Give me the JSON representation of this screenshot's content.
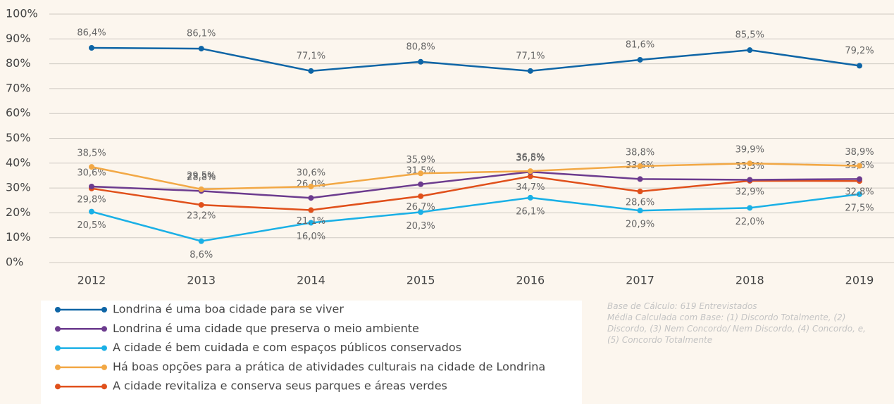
{
  "chart_data": {
    "type": "line",
    "categories": [
      "2012",
      "2013",
      "2014",
      "2015",
      "2016",
      "2017",
      "2018",
      "2019"
    ],
    "ylim": [
      0,
      100
    ],
    "yticks": [
      {
        "value": 0,
        "label": "0%"
      },
      {
        "value": 10,
        "label": "10%"
      },
      {
        "value": 20,
        "label": "20%"
      },
      {
        "value": 30,
        "label": "30%"
      },
      {
        "value": 40,
        "label": "40%"
      },
      {
        "value": 50,
        "label": "50%"
      },
      {
        "value": 60,
        "label": "60%"
      },
      {
        "value": 70,
        "label": "70%"
      },
      {
        "value": 80,
        "label": "80%"
      },
      {
        "value": 90,
        "label": "90%"
      },
      {
        "value": 100,
        "label": "100%"
      }
    ],
    "grid": true,
    "series": [
      {
        "name": "Londrina é uma boa cidade para se viver",
        "color": "#0e65a6",
        "values": [
          86.4,
          86.1,
          77.1,
          80.8,
          77.1,
          81.6,
          85.5,
          79.2
        ],
        "value_labels": [
          "86,4%",
          "86,1%",
          "77,1%",
          "80,8%",
          "77,1%",
          "81,6%",
          "85,5%",
          "79,2%"
        ]
      },
      {
        "name": "Londrina é uma cidade que preserva o meio ambiente",
        "color": "#6c3b8e",
        "values": [
          30.6,
          28.8,
          26.0,
          31.5,
          36.5,
          33.6,
          33.3,
          33.6
        ],
        "value_labels": [
          "30,6%",
          "28,8%",
          "26,0%",
          "31,5%",
          "36,5%",
          "33,6%",
          "33,3%",
          "33,6%"
        ]
      },
      {
        "name": "A cidade é bem cuidada e com espaços públicos conservados",
        "color": "#1ab0e6",
        "values": [
          20.5,
          8.6,
          16.0,
          20.3,
          26.1,
          20.9,
          22.0,
          27.5
        ],
        "value_labels": [
          "20,5%",
          "8,6%",
          "16,0%",
          "20,3%",
          "26,1%",
          "20,9%",
          "22,0%",
          "27,5%"
        ]
      },
      {
        "name": "Há boas opções para a prática de atividades culturais na cidade de Londrina",
        "color": "#f2a845",
        "values": [
          38.5,
          29.5,
          30.6,
          35.9,
          36.8,
          38.8,
          39.9,
          38.9
        ],
        "value_labels": [
          "38,5%",
          "29,5%",
          "30,6%",
          "35,9%",
          "36,8%",
          "38,8%",
          "39,9%",
          "38,9%"
        ]
      },
      {
        "name": "A cidade revitaliza e conserva seus parques e áreas verdes",
        "color": "#e0501b",
        "values": [
          29.8,
          23.2,
          21.1,
          26.7,
          34.7,
          28.6,
          32.9,
          32.8
        ],
        "value_labels": [
          "29,8%",
          "23,2%",
          "21,1%",
          "26,7%",
          "34,7%",
          "28,6%",
          "32,9%",
          "32,8%"
        ]
      }
    ],
    "notes": [
      "Base de Cálculo: 619 Entrevistados",
      "Média Calculada com Base: (1) Discordo Totalmente, (2) Discordo, (3) Nem Concordo/ Nem Discordo, (4) Concordo, e, (5) Concordo Totalmente"
    ]
  }
}
